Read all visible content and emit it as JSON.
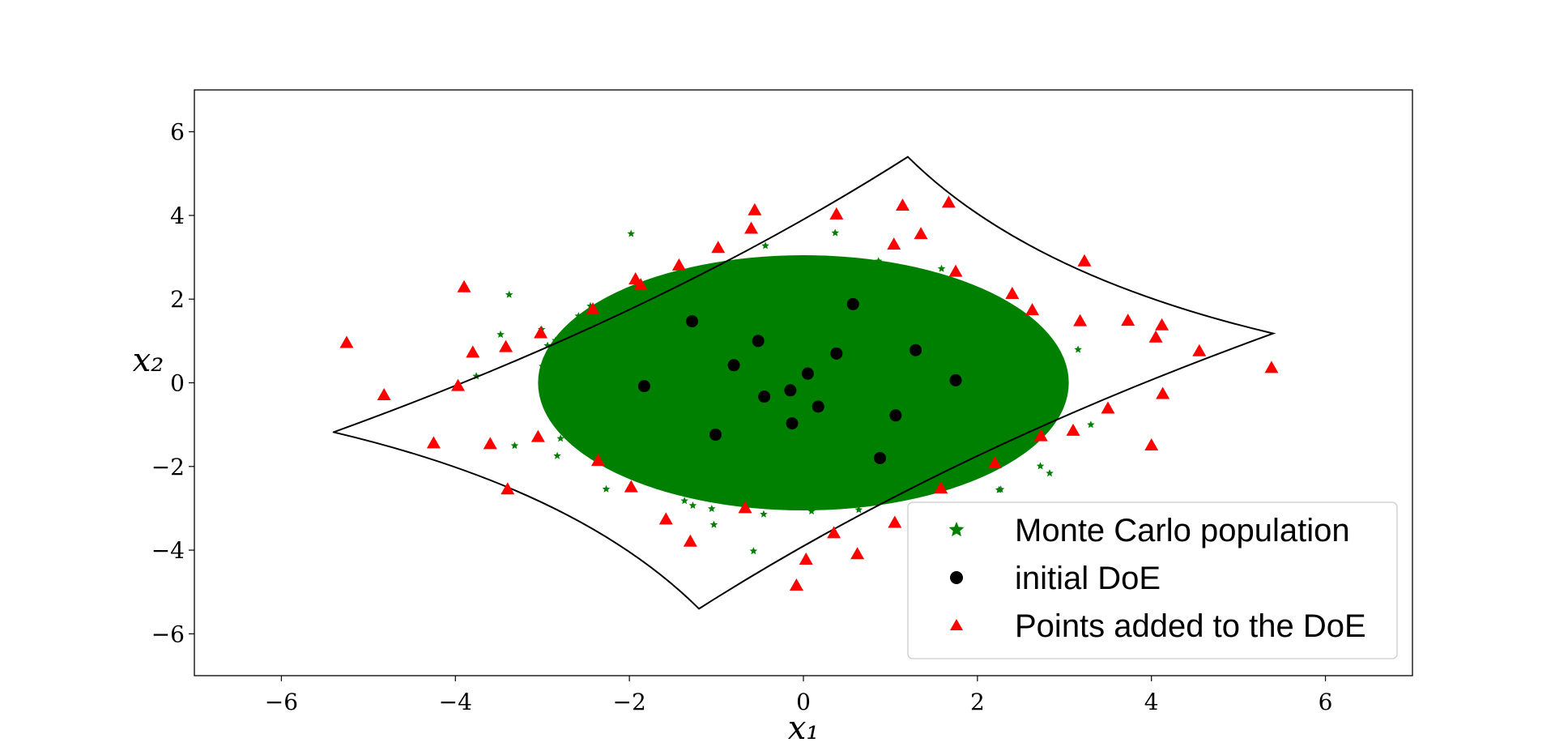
{
  "chart_data": {
    "type": "scatter",
    "title": "",
    "xlabel": "x₁",
    "ylabel": "x₂",
    "xlim": [
      -7,
      7
    ],
    "ylim": [
      -7,
      7
    ],
    "xticks": [
      -6,
      -4,
      -2,
      0,
      2,
      4,
      6
    ],
    "xtick_labels": [
      "−6",
      "−4",
      "−2",
      "0",
      "2",
      "4",
      "6"
    ],
    "yticks": [
      -6,
      -4,
      -2,
      0,
      2,
      4,
      6
    ],
    "ytick_labels": [
      "−6",
      "−4",
      "−2",
      "0",
      "2",
      "4",
      "6"
    ],
    "grid": false,
    "legend_position": "bottom-right",
    "colors": {
      "monte_carlo": "#008000",
      "initial_doe": "#000000",
      "added_doe": "#ff0000",
      "boundary": "#000000"
    },
    "series": [
      {
        "name": "Monte Carlo population",
        "marker": "star",
        "color": "#008000",
        "distribution": {
          "type": "gaussian",
          "mean": [
            0,
            0
          ],
          "std": [
            1.0,
            1.0
          ],
          "approx_extent_x": [
            -4.5,
            4.5
          ],
          "approx_extent_y": [
            -4.5,
            4.5
          ]
        }
      },
      {
        "name": "initial DoE",
        "marker": "circle",
        "color": "#000000",
        "points": [
          [
            -1.83,
            -0.08
          ],
          [
            -1.28,
            1.47
          ],
          [
            -0.8,
            0.42
          ],
          [
            -0.52,
            1.0
          ],
          [
            -0.45,
            -0.33
          ],
          [
            -0.15,
            -0.18
          ],
          [
            -0.13,
            -0.97
          ],
          [
            0.05,
            0.22
          ],
          [
            0.17,
            -0.57
          ],
          [
            0.38,
            0.7
          ],
          [
            0.57,
            1.88
          ],
          [
            0.88,
            -1.8
          ],
          [
            1.06,
            -0.78
          ],
          [
            1.29,
            0.78
          ],
          [
            1.75,
            0.06
          ],
          [
            -1.01,
            -1.24
          ]
        ]
      },
      {
        "name": "Points added to the DoE",
        "marker": "triangle",
        "color": "#ff0000",
        "points": [
          [
            -5.25,
            0.95
          ],
          [
            -4.82,
            -0.3
          ],
          [
            -4.25,
            -1.45
          ],
          [
            -3.97,
            -0.08
          ],
          [
            -3.9,
            2.28
          ],
          [
            -3.8,
            0.72
          ],
          [
            -3.6,
            -1.47
          ],
          [
            -3.42,
            0.85
          ],
          [
            -3.4,
            -2.55
          ],
          [
            -3.02,
            1.18
          ],
          [
            -3.05,
            -1.3
          ],
          [
            -2.42,
            1.75
          ],
          [
            -2.36,
            -1.87
          ],
          [
            -1.98,
            -2.5
          ],
          [
            -1.93,
            2.47
          ],
          [
            -1.87,
            2.33
          ],
          [
            -1.58,
            -3.27
          ],
          [
            -1.43,
            2.8
          ],
          [
            -1.3,
            -3.8
          ],
          [
            -0.98,
            3.22
          ],
          [
            -0.67,
            -3.0
          ],
          [
            -0.6,
            3.68
          ],
          [
            -0.56,
            4.12
          ],
          [
            -0.08,
            -4.85
          ],
          [
            0.03,
            -4.23
          ],
          [
            0.38,
            4.02
          ],
          [
            0.35,
            -3.6
          ],
          [
            0.62,
            -4.1
          ],
          [
            1.05,
            -3.35
          ],
          [
            1.04,
            3.3
          ],
          [
            1.14,
            4.23
          ],
          [
            1.35,
            3.55
          ],
          [
            1.58,
            -2.53
          ],
          [
            1.67,
            4.3
          ],
          [
            1.75,
            2.65
          ],
          [
            2.2,
            -1.93
          ],
          [
            2.4,
            2.12
          ],
          [
            2.63,
            1.73
          ],
          [
            2.73,
            -1.28
          ],
          [
            3.1,
            -1.15
          ],
          [
            3.18,
            1.47
          ],
          [
            3.23,
            2.9
          ],
          [
            3.5,
            -0.62
          ],
          [
            3.73,
            1.48
          ],
          [
            4.0,
            -1.5
          ],
          [
            4.05,
            1.08
          ],
          [
            4.12,
            1.37
          ],
          [
            4.13,
            -0.27
          ],
          [
            4.55,
            0.75
          ],
          [
            5.38,
            0.35
          ]
        ]
      }
    ],
    "limit_state_boundary": {
      "name": "limit state curve",
      "color": "#000000",
      "vertices": [
        [
          -5.4,
          -1.18
        ],
        [
          -1.2,
          -5.4
        ],
        [
          5.4,
          1.18
        ],
        [
          1.2,
          5.4
        ]
      ]
    }
  },
  "legend": {
    "items": [
      {
        "label": "Monte Carlo population",
        "marker": "star",
        "color": "#008000"
      },
      {
        "label": "initial DoE",
        "marker": "circle",
        "color": "#000000"
      },
      {
        "label": "Points added to the DoE",
        "marker": "triangle",
        "color": "#ff0000"
      }
    ]
  }
}
